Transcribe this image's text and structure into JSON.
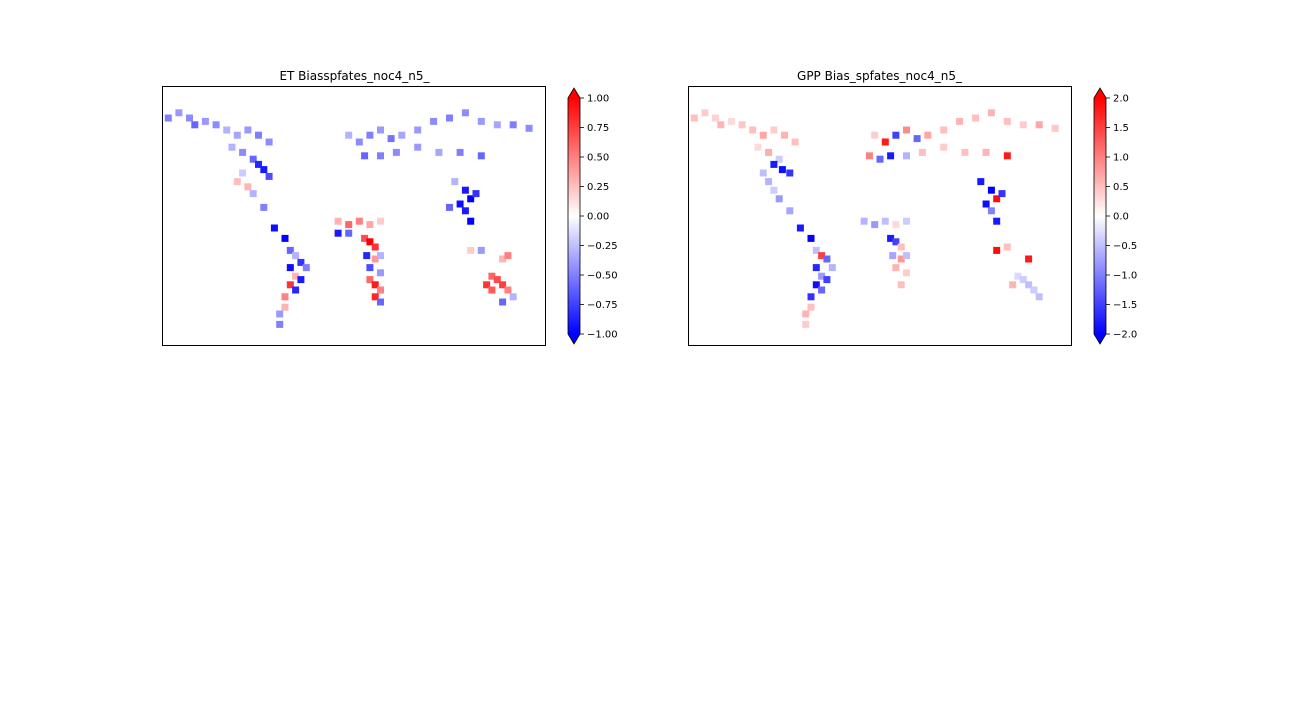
{
  "chart_data": [
    {
      "type": "heatmap",
      "title": "ET Biasspfates_noc4_n5_",
      "colormap": "bwr",
      "vmin": -1.0,
      "vmax": 1.0,
      "colorbar": {
        "ticks": [
          1.0,
          0.75,
          0.5,
          0.25,
          0.0,
          -0.25,
          -0.5,
          -0.75,
          -1.0
        ],
        "tick_labels": [
          "1.00",
          "0.75",
          "0.50",
          "0.25",
          "0.00",
          "−0.25",
          "−0.50",
          "−0.75",
          "−1.00"
        ],
        "extend": "both"
      },
      "grid_note": "approximate global grid, lon -180..180, lat -60..90",
      "cells": [
        {
          "lon": -175,
          "lat": 72,
          "v": -0.5
        },
        {
          "lon": -165,
          "lat": 75,
          "v": -0.4
        },
        {
          "lon": -155,
          "lat": 72,
          "v": -0.45
        },
        {
          "lon": -150,
          "lat": 68,
          "v": -0.6
        },
        {
          "lon": -140,
          "lat": 70,
          "v": -0.4
        },
        {
          "lon": -130,
          "lat": 68,
          "v": -0.45
        },
        {
          "lon": -120,
          "lat": 65,
          "v": -0.3
        },
        {
          "lon": -110,
          "lat": 62,
          "v": -0.35
        },
        {
          "lon": -100,
          "lat": 65,
          "v": -0.4
        },
        {
          "lon": -90,
          "lat": 62,
          "v": -0.5
        },
        {
          "lon": -80,
          "lat": 58,
          "v": -0.45
        },
        {
          "lon": -115,
          "lat": 55,
          "v": -0.3
        },
        {
          "lon": -105,
          "lat": 52,
          "v": -0.45
        },
        {
          "lon": -95,
          "lat": 48,
          "v": -0.6
        },
        {
          "lon": -90,
          "lat": 45,
          "v": -0.85
        },
        {
          "lon": -85,
          "lat": 42,
          "v": -0.9
        },
        {
          "lon": -80,
          "lat": 38,
          "v": -0.7
        },
        {
          "lon": -105,
          "lat": 40,
          "v": -0.2
        },
        {
          "lon": -110,
          "lat": 35,
          "v": 0.25
        },
        {
          "lon": -100,
          "lat": 32,
          "v": 0.3
        },
        {
          "lon": -95,
          "lat": 28,
          "v": -0.3
        },
        {
          "lon": -85,
          "lat": 20,
          "v": -0.5
        },
        {
          "lon": -75,
          "lat": 8,
          "v": -0.95
        },
        {
          "lon": -65,
          "lat": 2,
          "v": -1.0
        },
        {
          "lon": -60,
          "lat": -5,
          "v": -0.6
        },
        {
          "lon": -55,
          "lat": -8,
          "v": -0.3
        },
        {
          "lon": -50,
          "lat": -12,
          "v": -0.8
        },
        {
          "lon": -45,
          "lat": -15,
          "v": -0.5
        },
        {
          "lon": -60,
          "lat": -15,
          "v": -0.95
        },
        {
          "lon": -55,
          "lat": -20,
          "v": 0.3
        },
        {
          "lon": -50,
          "lat": -22,
          "v": -0.9
        },
        {
          "lon": -60,
          "lat": -25,
          "v": 0.8
        },
        {
          "lon": -55,
          "lat": -28,
          "v": -0.85
        },
        {
          "lon": -65,
          "lat": -32,
          "v": 0.5
        },
        {
          "lon": -65,
          "lat": -38,
          "v": 0.3
        },
        {
          "lon": -70,
          "lat": -42,
          "v": -0.4
        },
        {
          "lon": -70,
          "lat": -48,
          "v": -0.5
        },
        {
          "lon": -5,
          "lat": 62,
          "v": -0.3
        },
        {
          "lon": 5,
          "lat": 58,
          "v": -0.45
        },
        {
          "lon": 15,
          "lat": 62,
          "v": -0.5
        },
        {
          "lon": 25,
          "lat": 65,
          "v": -0.4
        },
        {
          "lon": 35,
          "lat": 60,
          "v": -0.55
        },
        {
          "lon": 45,
          "lat": 62,
          "v": -0.35
        },
        {
          "lon": 60,
          "lat": 65,
          "v": -0.4
        },
        {
          "lon": 75,
          "lat": 70,
          "v": -0.45
        },
        {
          "lon": 90,
          "lat": 72,
          "v": -0.5
        },
        {
          "lon": 105,
          "lat": 75,
          "v": -0.45
        },
        {
          "lon": 120,
          "lat": 70,
          "v": -0.4
        },
        {
          "lon": 135,
          "lat": 68,
          "v": -0.35
        },
        {
          "lon": 150,
          "lat": 68,
          "v": -0.5
        },
        {
          "lon": 165,
          "lat": 66,
          "v": -0.45
        },
        {
          "lon": 10,
          "lat": 50,
          "v": -0.6
        },
        {
          "lon": 25,
          "lat": 50,
          "v": -0.5
        },
        {
          "lon": 40,
          "lat": 52,
          "v": -0.45
        },
        {
          "lon": 60,
          "lat": 55,
          "v": -0.4
        },
        {
          "lon": 80,
          "lat": 52,
          "v": -0.35
        },
        {
          "lon": 100,
          "lat": 52,
          "v": -0.5
        },
        {
          "lon": 120,
          "lat": 50,
          "v": -0.6
        },
        {
          "lon": 95,
          "lat": 35,
          "v": -0.3
        },
        {
          "lon": 105,
          "lat": 30,
          "v": -0.9
        },
        {
          "lon": 110,
          "lat": 25,
          "v": -1.0
        },
        {
          "lon": 115,
          "lat": 28,
          "v": -0.8
        },
        {
          "lon": 100,
          "lat": 22,
          "v": -0.95
        },
        {
          "lon": 105,
          "lat": 18,
          "v": -0.9
        },
        {
          "lon": 110,
          "lat": 12,
          "v": -1.0
        },
        {
          "lon": 90,
          "lat": 20,
          "v": -0.6
        },
        {
          "lon": -15,
          "lat": 12,
          "v": 0.3
        },
        {
          "lon": -5,
          "lat": 10,
          "v": 0.6
        },
        {
          "lon": 5,
          "lat": 12,
          "v": 0.5
        },
        {
          "lon": 15,
          "lat": 10,
          "v": 0.35
        },
        {
          "lon": 25,
          "lat": 12,
          "v": 0.2
        },
        {
          "lon": -15,
          "lat": 5,
          "v": -0.9
        },
        {
          "lon": -5,
          "lat": 5,
          "v": -0.6
        },
        {
          "lon": 10,
          "lat": 2,
          "v": 0.7
        },
        {
          "lon": 15,
          "lat": 0,
          "v": 1.0
        },
        {
          "lon": 20,
          "lat": -3,
          "v": 0.8
        },
        {
          "lon": 12,
          "lat": -8,
          "v": -0.85
        },
        {
          "lon": 20,
          "lat": -10,
          "v": 0.4
        },
        {
          "lon": 25,
          "lat": -8,
          "v": -0.3
        },
        {
          "lon": 15,
          "lat": -15,
          "v": -0.7
        },
        {
          "lon": 25,
          "lat": -18,
          "v": -0.4
        },
        {
          "lon": 15,
          "lat": -22,
          "v": 0.6
        },
        {
          "lon": 20,
          "lat": -25,
          "v": 0.9
        },
        {
          "lon": 25,
          "lat": -28,
          "v": 0.5
        },
        {
          "lon": 20,
          "lat": -32,
          "v": 0.85
        },
        {
          "lon": 25,
          "lat": -35,
          "v": -0.6
        },
        {
          "lon": 110,
          "lat": -5,
          "v": 0.2
        },
        {
          "lon": 120,
          "lat": -5,
          "v": -0.4
        },
        {
          "lon": 140,
          "lat": -10,
          "v": 0.3
        },
        {
          "lon": 145,
          "lat": -8,
          "v": 0.5
        },
        {
          "lon": 130,
          "lat": -20,
          "v": 0.6
        },
        {
          "lon": 135,
          "lat": -22,
          "v": 0.7
        },
        {
          "lon": 125,
          "lat": -25,
          "v": 0.8
        },
        {
          "lon": 140,
          "lat": -25,
          "v": 0.75
        },
        {
          "lon": 145,
          "lat": -28,
          "v": 0.5
        },
        {
          "lon": 130,
          "lat": -28,
          "v": 0.65
        },
        {
          "lon": 150,
          "lat": -32,
          "v": -0.3
        },
        {
          "lon": 140,
          "lat": -35,
          "v": -0.6
        }
      ]
    },
    {
      "type": "heatmap",
      "title": "GPP Bias_spfates_noc4_n5_",
      "colormap": "bwr",
      "vmin": -2.0,
      "vmax": 2.0,
      "colorbar": {
        "ticks": [
          2.0,
          1.5,
          1.0,
          0.5,
          0.0,
          -0.5,
          -1.0,
          -1.5,
          -2.0
        ],
        "tick_labels": [
          "2.0",
          "1.5",
          "1.0",
          "0.5",
          "0.0",
          "−0.5",
          "−1.0",
          "−1.5",
          "−2.0"
        ],
        "extend": "both"
      },
      "grid_note": "approximate global grid, lon -180..180, lat -60..90",
      "cells": [
        {
          "lon": -175,
          "lat": 72,
          "v": 0.5
        },
        {
          "lon": -165,
          "lat": 75,
          "v": 0.4
        },
        {
          "lon": -155,
          "lat": 72,
          "v": 0.35
        },
        {
          "lon": -150,
          "lat": 68,
          "v": 0.6
        },
        {
          "lon": -140,
          "lat": 70,
          "v": 0.3
        },
        {
          "lon": -130,
          "lat": 68,
          "v": 0.45
        },
        {
          "lon": -120,
          "lat": 65,
          "v": 0.5
        },
        {
          "lon": -110,
          "lat": 62,
          "v": 0.7
        },
        {
          "lon": -100,
          "lat": 65,
          "v": 0.4
        },
        {
          "lon": -90,
          "lat": 62,
          "v": 0.6
        },
        {
          "lon": -80,
          "lat": 58,
          "v": 0.5
        },
        {
          "lon": -115,
          "lat": 55,
          "v": 0.3
        },
        {
          "lon": -105,
          "lat": 52,
          "v": 0.65
        },
        {
          "lon": -95,
          "lat": 48,
          "v": -0.4
        },
        {
          "lon": -100,
          "lat": 45,
          "v": -1.8
        },
        {
          "lon": -92,
          "lat": 42,
          "v": -1.9
        },
        {
          "lon": -85,
          "lat": 40,
          "v": -1.6
        },
        {
          "lon": -110,
          "lat": 40,
          "v": -0.5
        },
        {
          "lon": -105,
          "lat": 35,
          "v": -0.6
        },
        {
          "lon": -100,
          "lat": 30,
          "v": -0.4
        },
        {
          "lon": -95,
          "lat": 25,
          "v": -0.8
        },
        {
          "lon": -85,
          "lat": 18,
          "v": -0.7
        },
        {
          "lon": -75,
          "lat": 8,
          "v": -1.8
        },
        {
          "lon": -65,
          "lat": 2,
          "v": -2.0
        },
        {
          "lon": -60,
          "lat": -5,
          "v": -0.5
        },
        {
          "lon": -55,
          "lat": -8,
          "v": 1.5
        },
        {
          "lon": -50,
          "lat": -10,
          "v": -1.2
        },
        {
          "lon": -45,
          "lat": -15,
          "v": -0.6
        },
        {
          "lon": -60,
          "lat": -15,
          "v": -1.7
        },
        {
          "lon": -55,
          "lat": -20,
          "v": -0.8
        },
        {
          "lon": -50,
          "lat": -22,
          "v": -1.5
        },
        {
          "lon": -60,
          "lat": -25,
          "v": -1.9
        },
        {
          "lon": -55,
          "lat": -28,
          "v": -1.2
        },
        {
          "lon": -65,
          "lat": -32,
          "v": -1.6
        },
        {
          "lon": -65,
          "lat": -38,
          "v": 0.5
        },
        {
          "lon": -70,
          "lat": -42,
          "v": 0.6
        },
        {
          "lon": -70,
          "lat": -48,
          "v": 0.4
        },
        {
          "lon": -5,
          "lat": 62,
          "v": 0.4
        },
        {
          "lon": 5,
          "lat": 58,
          "v": 1.8
        },
        {
          "lon": 15,
          "lat": 62,
          "v": -1.5
        },
        {
          "lon": 25,
          "lat": 65,
          "v": 0.9
        },
        {
          "lon": 35,
          "lat": 60,
          "v": -1.2
        },
        {
          "lon": 45,
          "lat": 62,
          "v": 0.7
        },
        {
          "lon": 60,
          "lat": 65,
          "v": 0.5
        },
        {
          "lon": 75,
          "lat": 70,
          "v": 0.6
        },
        {
          "lon": 90,
          "lat": 72,
          "v": 0.5
        },
        {
          "lon": 105,
          "lat": 75,
          "v": 0.6
        },
        {
          "lon": 120,
          "lat": 70,
          "v": 0.5
        },
        {
          "lon": 135,
          "lat": 68,
          "v": 0.4
        },
        {
          "lon": 150,
          "lat": 68,
          "v": 0.7
        },
        {
          "lon": 165,
          "lat": 66,
          "v": 0.45
        },
        {
          "lon": -10,
          "lat": 50,
          "v": 1.0
        },
        {
          "lon": 0,
          "lat": 48,
          "v": -1.2
        },
        {
          "lon": 10,
          "lat": 50,
          "v": -1.8
        },
        {
          "lon": 25,
          "lat": 50,
          "v": -0.6
        },
        {
          "lon": 40,
          "lat": 52,
          "v": 0.5
        },
        {
          "lon": 60,
          "lat": 55,
          "v": 0.4
        },
        {
          "lon": 80,
          "lat": 52,
          "v": 0.5
        },
        {
          "lon": 100,
          "lat": 52,
          "v": 0.6
        },
        {
          "lon": 120,
          "lat": 50,
          "v": 1.8
        },
        {
          "lon": 95,
          "lat": 35,
          "v": -1.8
        },
        {
          "lon": 105,
          "lat": 30,
          "v": -2.0
        },
        {
          "lon": 110,
          "lat": 25,
          "v": 1.9
        },
        {
          "lon": 115,
          "lat": 28,
          "v": -1.6
        },
        {
          "lon": 100,
          "lat": 22,
          "v": -1.9
        },
        {
          "lon": 105,
          "lat": 18,
          "v": -1.0
        },
        {
          "lon": 110,
          "lat": 12,
          "v": -1.8
        },
        {
          "lon": -15,
          "lat": 12,
          "v": -0.6
        },
        {
          "lon": -5,
          "lat": 10,
          "v": -0.8
        },
        {
          "lon": 5,
          "lat": 12,
          "v": -0.5
        },
        {
          "lon": 15,
          "lat": 10,
          "v": 0.3
        },
        {
          "lon": 25,
          "lat": 12,
          "v": -0.4
        },
        {
          "lon": 10,
          "lat": 2,
          "v": -1.8
        },
        {
          "lon": 15,
          "lat": 0,
          "v": -1.5
        },
        {
          "lon": 20,
          "lat": -3,
          "v": 0.5
        },
        {
          "lon": 12,
          "lat": -8,
          "v": -0.7
        },
        {
          "lon": 20,
          "lat": -10,
          "v": 0.8
        },
        {
          "lon": 25,
          "lat": -8,
          "v": -0.5
        },
        {
          "lon": 15,
          "lat": -15,
          "v": 0.6
        },
        {
          "lon": 25,
          "lat": -18,
          "v": 0.4
        },
        {
          "lon": 20,
          "lat": -25,
          "v": 0.5
        },
        {
          "lon": 110,
          "lat": -5,
          "v": 1.9
        },
        {
          "lon": 120,
          "lat": -3,
          "v": 0.5
        },
        {
          "lon": 140,
          "lat": -10,
          "v": 1.8
        },
        {
          "lon": 130,
          "lat": -20,
          "v": -0.3
        },
        {
          "lon": 135,
          "lat": -22,
          "v": -0.4
        },
        {
          "lon": 125,
          "lat": -25,
          "v": 0.6
        },
        {
          "lon": 140,
          "lat": -25,
          "v": -0.5
        },
        {
          "lon": 145,
          "lat": -28,
          "v": -0.4
        },
        {
          "lon": 150,
          "lat": -32,
          "v": -0.5
        }
      ]
    }
  ]
}
